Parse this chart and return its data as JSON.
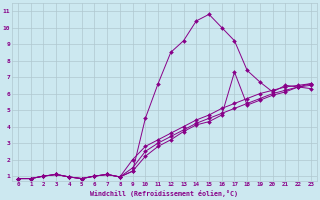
{
  "xlabel": "Windchill (Refroidissement éolien,°C)",
  "background_color": "#cce8f0",
  "grid_color": "#b0c8d0",
  "line_color": "#880088",
  "xlim": [
    -0.5,
    23.5
  ],
  "ylim": [
    0.7,
    11.5
  ],
  "xticks": [
    0,
    1,
    2,
    3,
    4,
    5,
    6,
    7,
    8,
    9,
    10,
    11,
    12,
    13,
    14,
    15,
    16,
    17,
    18,
    19,
    20,
    21,
    22,
    23
  ],
  "yticks": [
    1,
    2,
    3,
    4,
    5,
    6,
    7,
    8,
    9,
    10,
    11
  ],
  "series": [
    {
      "x": [
        0,
        1,
        2,
        3,
        4,
        5,
        6,
        7,
        8,
        9,
        10,
        11,
        12,
        13,
        14,
        15,
        16,
        17,
        18,
        19,
        20,
        21,
        22,
        23
      ],
      "y": [
        0.85,
        0.85,
        1.0,
        1.1,
        0.95,
        0.85,
        1.0,
        1.1,
        0.95,
        1.3,
        4.5,
        6.6,
        8.5,
        9.2,
        10.4,
        10.8,
        10.0,
        9.2,
        7.4,
        6.7,
        6.1,
        6.5,
        6.4,
        6.3
      ]
    },
    {
      "x": [
        0,
        1,
        2,
        3,
        4,
        5,
        6,
        7,
        8,
        9,
        10,
        11,
        12,
        13,
        14,
        15,
        16,
        17,
        18,
        19,
        20,
        21,
        22,
        23
      ],
      "y": [
        0.85,
        0.85,
        1.0,
        1.1,
        0.95,
        0.85,
        1.0,
        1.1,
        0.95,
        1.3,
        2.2,
        2.8,
        3.2,
        3.7,
        4.1,
        4.3,
        4.7,
        7.3,
        5.3,
        5.6,
        5.9,
        6.1,
        6.4,
        6.5
      ]
    },
    {
      "x": [
        0,
        1,
        2,
        3,
        4,
        5,
        6,
        7,
        8,
        9,
        10,
        11,
        12,
        13,
        14,
        15,
        16,
        17,
        18,
        19,
        20,
        21,
        22,
        23
      ],
      "y": [
        0.85,
        0.85,
        1.0,
        1.1,
        0.95,
        0.85,
        1.0,
        1.1,
        0.95,
        1.5,
        2.5,
        3.0,
        3.4,
        3.8,
        4.2,
        4.5,
        4.8,
        5.1,
        5.4,
        5.7,
        6.0,
        6.2,
        6.4,
        6.6
      ]
    },
    {
      "x": [
        0,
        1,
        2,
        3,
        4,
        5,
        6,
        7,
        8,
        9,
        10,
        11,
        12,
        13,
        14,
        15,
        16,
        17,
        18,
        19,
        20,
        21,
        22,
        23
      ],
      "y": [
        0.85,
        0.85,
        1.0,
        1.1,
        0.95,
        0.85,
        1.0,
        1.1,
        0.95,
        2.0,
        2.8,
        3.2,
        3.6,
        4.0,
        4.4,
        4.7,
        5.1,
        5.4,
        5.7,
        6.0,
        6.2,
        6.4,
        6.5,
        6.6
      ]
    }
  ]
}
